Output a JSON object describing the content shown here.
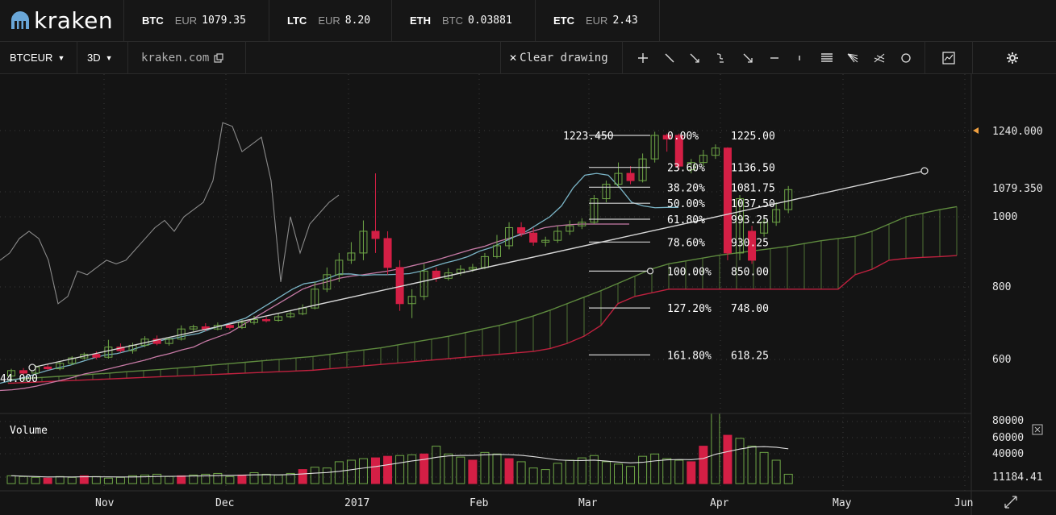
{
  "logo": {
    "text": "kraken"
  },
  "tickers": [
    {
      "symbol": "BTC",
      "currency": "EUR",
      "price": "1079.35"
    },
    {
      "symbol": "LTC",
      "currency": "EUR",
      "price": "8.20"
    },
    {
      "symbol": "ETH",
      "currency": "BTC",
      "price": "0.03881"
    },
    {
      "symbol": "ETC",
      "currency": "EUR",
      "price": "2.43"
    }
  ],
  "toolbar": {
    "pair": "BTCEUR",
    "interval": "3D",
    "site": "kraken.com",
    "clear_drawing": "Clear drawing"
  },
  "price_axis": {
    "labels": [
      "1240.000",
      "1079.350",
      "1000",
      "800",
      "600"
    ],
    "values": [
      1240,
      1079.35,
      1000,
      800,
      600
    ],
    "range": [
      420,
      1400
    ]
  },
  "volume_axis": {
    "labels": [
      "80000",
      "60000",
      "40000",
      "11184.41"
    ],
    "values": [
      80000,
      60000,
      40000,
      11184.41
    ],
    "range": [
      0,
      90000
    ]
  },
  "time_axis": {
    "labels": [
      "Nov",
      "Dec",
      "2017",
      "Feb",
      "Mar",
      "Apr",
      "May",
      "Jun"
    ]
  },
  "volume_label": "Volume",
  "left_price_label": "44.000",
  "high_label": "1223.450",
  "fibonacci": [
    {
      "pct": "0.00%",
      "price": "1225.00",
      "value": 1225
    },
    {
      "pct": "23.60%",
      "price": "1136.50",
      "value": 1136.5
    },
    {
      "pct": "38.20%",
      "price": "1081.75",
      "value": 1081.75
    },
    {
      "pct": "50.00%",
      "price": "1037.50",
      "value": 1037.5
    },
    {
      "pct": "61.80%",
      "price": "993.25",
      "value": 993.25
    },
    {
      "pct": "78.60%",
      "price": "930.25",
      "value": 930.25
    },
    {
      "pct": "100.00%",
      "price": "850.00",
      "value": 850
    },
    {
      "pct": "127.20%",
      "price": "748.00",
      "value": 748
    },
    {
      "pct": "161.80%",
      "price": "618.25",
      "value": 618.25
    }
  ],
  "colors": {
    "up": "#6ea646",
    "down": "#d41f45",
    "teal": "#7ab4c6",
    "pink": "#c77aa6",
    "grey": "#8a8a8a",
    "cloud_green": "#5e8a3e",
    "cloud_red": "#c0213f",
    "current": "#f0a040"
  },
  "chart_data": {
    "type": "candlestick",
    "candles": [
      {
        "o": 560,
        "c": 575,
        "h": 580,
        "l": 552
      },
      {
        "o": 575,
        "c": 568,
        "h": 582,
        "l": 562
      },
      {
        "o": 568,
        "c": 585,
        "h": 590,
        "l": 564
      },
      {
        "o": 585,
        "c": 580,
        "h": 592,
        "l": 576
      },
      {
        "o": 580,
        "c": 595,
        "h": 600,
        "l": 576
      },
      {
        "o": 595,
        "c": 610,
        "h": 615,
        "l": 590
      },
      {
        "o": 610,
        "c": 620,
        "h": 625,
        "l": 605
      },
      {
        "o": 620,
        "c": 612,
        "h": 628,
        "l": 606
      },
      {
        "o": 612,
        "c": 640,
        "h": 660,
        "l": 608
      },
      {
        "o": 640,
        "c": 630,
        "h": 650,
        "l": 625
      },
      {
        "o": 630,
        "c": 645,
        "h": 652,
        "l": 622
      },
      {
        "o": 645,
        "c": 662,
        "h": 670,
        "l": 640
      },
      {
        "o": 662,
        "c": 650,
        "h": 672,
        "l": 645
      },
      {
        "o": 650,
        "c": 662,
        "h": 668,
        "l": 644
      },
      {
        "o": 662,
        "c": 690,
        "h": 700,
        "l": 658
      },
      {
        "o": 690,
        "c": 696,
        "h": 702,
        "l": 684
      },
      {
        "o": 696,
        "c": 690,
        "h": 706,
        "l": 684
      },
      {
        "o": 690,
        "c": 700,
        "h": 708,
        "l": 686
      },
      {
        "o": 700,
        "c": 694,
        "h": 706,
        "l": 688
      },
      {
        "o": 694,
        "c": 708,
        "h": 716,
        "l": 690
      },
      {
        "o": 708,
        "c": 716,
        "h": 726,
        "l": 702
      },
      {
        "o": 716,
        "c": 714,
        "h": 724,
        "l": 708
      },
      {
        "o": 714,
        "c": 724,
        "h": 732,
        "l": 710
      },
      {
        "o": 724,
        "c": 732,
        "h": 740,
        "l": 720
      },
      {
        "o": 732,
        "c": 748,
        "h": 758,
        "l": 728
      },
      {
        "o": 748,
        "c": 800,
        "h": 820,
        "l": 744
      },
      {
        "o": 800,
        "c": 840,
        "h": 860,
        "l": 792
      },
      {
        "o": 840,
        "c": 880,
        "h": 900,
        "l": 820
      },
      {
        "o": 880,
        "c": 900,
        "h": 930,
        "l": 870
      },
      {
        "o": 900,
        "c": 960,
        "h": 990,
        "l": 880
      },
      {
        "o": 960,
        "c": 940,
        "h": 1120,
        "l": 900
      },
      {
        "o": 940,
        "c": 860,
        "h": 960,
        "l": 840
      },
      {
        "o": 860,
        "c": 760,
        "h": 880,
        "l": 740
      },
      {
        "o": 760,
        "c": 780,
        "h": 800,
        "l": 720
      },
      {
        "o": 780,
        "c": 850,
        "h": 870,
        "l": 770
      },
      {
        "o": 850,
        "c": 830,
        "h": 860,
        "l": 820
      },
      {
        "o": 830,
        "c": 845,
        "h": 858,
        "l": 824
      },
      {
        "o": 845,
        "c": 855,
        "h": 866,
        "l": 838
      },
      {
        "o": 855,
        "c": 860,
        "h": 870,
        "l": 848
      },
      {
        "o": 860,
        "c": 890,
        "h": 900,
        "l": 855
      },
      {
        "o": 890,
        "c": 920,
        "h": 950,
        "l": 885
      },
      {
        "o": 920,
        "c": 970,
        "h": 985,
        "l": 910
      },
      {
        "o": 970,
        "c": 955,
        "h": 985,
        "l": 945
      },
      {
        "o": 955,
        "c": 930,
        "h": 970,
        "l": 920
      },
      {
        "o": 930,
        "c": 935,
        "h": 945,
        "l": 918
      },
      {
        "o": 935,
        "c": 960,
        "h": 975,
        "l": 928
      },
      {
        "o": 960,
        "c": 975,
        "h": 990,
        "l": 950
      },
      {
        "o": 975,
        "c": 985,
        "h": 996,
        "l": 966
      },
      {
        "o": 985,
        "c": 1050,
        "h": 1060,
        "l": 980
      },
      {
        "o": 1050,
        "c": 1090,
        "h": 1100,
        "l": 1040
      },
      {
        "o": 1090,
        "c": 1120,
        "h": 1150,
        "l": 1080
      },
      {
        "o": 1120,
        "c": 1100,
        "h": 1140,
        "l": 1090
      },
      {
        "o": 1100,
        "c": 1160,
        "h": 1175,
        "l": 1095
      },
      {
        "o": 1160,
        "c": 1225,
        "h": 1235,
        "l": 1150
      },
      {
        "o": 1225,
        "c": 1215,
        "h": 1230,
        "l": 1180
      },
      {
        "o": 1225,
        "c": 1140,
        "h": 1230,
        "l": 1130
      },
      {
        "o": 1130,
        "c": 1150,
        "h": 1160,
        "l": 1120
      },
      {
        "o": 1150,
        "c": 1170,
        "h": 1185,
        "l": 1140
      },
      {
        "o": 1170,
        "c": 1190,
        "h": 1200,
        "l": 1160
      },
      {
        "o": 1190,
        "c": 900,
        "h": 1192,
        "l": 880
      },
      {
        "o": 900,
        "c": 1050,
        "h": 1060,
        "l": 880
      },
      {
        "o": 960,
        "c": 880,
        "h": 975,
        "l": 870
      },
      {
        "o": 955,
        "c": 985,
        "h": 1000,
        "l": 945
      },
      {
        "o": 985,
        "c": 1020,
        "h": 1040,
        "l": 975
      },
      {
        "o": 1020,
        "c": 1075,
        "h": 1085,
        "l": 1010
      }
    ],
    "volume": [
      10,
      9,
      8,
      7,
      9,
      8,
      10,
      9,
      7,
      8,
      10,
      11,
      12,
      9,
      10,
      11,
      12,
      13,
      9,
      11,
      14,
      12,
      11,
      13,
      18,
      21,
      20,
      28,
      30,
      32,
      33,
      35,
      36,
      37,
      38,
      48,
      38,
      34,
      30,
      40,
      38,
      32,
      28,
      20,
      18,
      26,
      30,
      33,
      36,
      28,
      25,
      22,
      35,
      38,
      32,
      30,
      28,
      48,
      90,
      62,
      58,
      48,
      40,
      30,
      12
    ],
    "vol_down": [
      3,
      6,
      14,
      19,
      24,
      30,
      31,
      34,
      38,
      41,
      56,
      57,
      59
    ],
    "tenkan": [
      540,
      548,
      555,
      565,
      575,
      583,
      590,
      600,
      610,
      618,
      622,
      630,
      640,
      650,
      660,
      665,
      672,
      678,
      690,
      700,
      710,
      720,
      740,
      760,
      780,
      800,
      815,
      820,
      830,
      842,
      842,
      838,
      840,
      840,
      841,
      843,
      850,
      862,
      872,
      880,
      890,
      905,
      915,
      930,
      945,
      960,
      980,
      1000,
      1030,
      1080,
      1115,
      1120,
      1115,
      1080,
      1040,
      1030,
      1025,
      1026,
      1026
    ],
    "kijun": [
      520,
      522,
      526,
      532,
      540,
      548,
      556,
      566,
      572,
      580,
      588,
      596,
      604,
      614,
      622,
      632,
      640,
      656,
      668,
      680,
      700,
      720,
      740,
      760,
      780,
      800,
      812,
      820,
      830,
      836,
      840,
      845,
      850,
      856,
      864,
      872,
      880,
      890,
      900,
      910,
      918,
      930,
      940,
      950,
      960,
      970,
      975,
      978,
      980,
      980,
      980,
      980,
      980
    ],
    "lagging": [
      880,
      900,
      940,
      960,
      940,
      880,
      760,
      780,
      850,
      840,
      860,
      880,
      870,
      880,
      910,
      940,
      970,
      990,
      960,
      1000,
      1020,
      1040,
      1100,
      1260,
      1250,
      1180,
      1200,
      1220,
      1100,
      820,
      1000,
      900,
      980,
      1010,
      1040,
      1060
    ],
    "span_a": [
      550,
      553,
      556,
      559,
      562,
      565,
      568,
      572,
      575,
      578,
      582,
      586,
      590,
      594,
      598,
      602,
      606,
      610,
      614,
      620,
      626,
      632,
      638,
      646,
      654,
      662,
      670,
      680,
      690,
      700,
      712,
      726,
      742,
      760,
      778,
      796,
      816,
      836,
      856,
      870,
      878,
      886,
      894,
      900,
      906,
      912,
      918,
      926,
      934,
      940,
      946,
      960,
      980,
      1000,
      1010,
      1020,
      1028,
      1030,
      1010
    ],
    "span_b": [
      540,
      542,
      544,
      546,
      548,
      550,
      552,
      554,
      556,
      558,
      560,
      562,
      564,
      566,
      568,
      570,
      572,
      574,
      576,
      580,
      584,
      588,
      592,
      596,
      600,
      604,
      608,
      612,
      616,
      620,
      624,
      628,
      636,
      650,
      670,
      700,
      760,
      780,
      790,
      800,
      800,
      800,
      800,
      800,
      800,
      800,
      800,
      800,
      800,
      800,
      840,
      855,
      880,
      885,
      888,
      890,
      893,
      896
    ]
  }
}
